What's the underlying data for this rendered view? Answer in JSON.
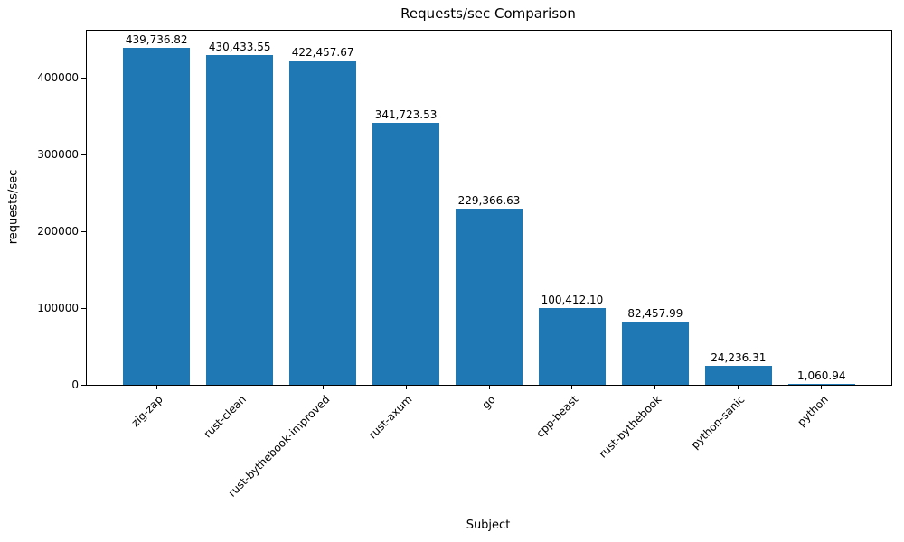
{
  "chart_data": {
    "type": "bar",
    "title": "Requests/sec Comparison",
    "xlabel": "Subject",
    "ylabel": "requests/sec",
    "categories": [
      "zig-zap",
      "rust-clean",
      "rust-bythebook-improved",
      "rust-axum",
      "go",
      "cpp-beast",
      "rust-bythebook",
      "python-sanic",
      "python"
    ],
    "values": [
      439736.82,
      430433.55,
      422457.67,
      341723.53,
      229366.63,
      100412.1,
      82457.99,
      24236.31,
      1060.94
    ],
    "value_labels": [
      "439,736.82",
      "430,433.55",
      "422,457.67",
      "341,723.53",
      "229,366.63",
      "100,412.10",
      "82,457.99",
      "24,236.31",
      "1,060.94"
    ],
    "y_ticks": [
      0,
      100000,
      200000,
      300000,
      400000
    ],
    "ylim": [
      0,
      461724
    ],
    "bar_color": "#1f77b4",
    "grid": false,
    "legend": "none"
  }
}
